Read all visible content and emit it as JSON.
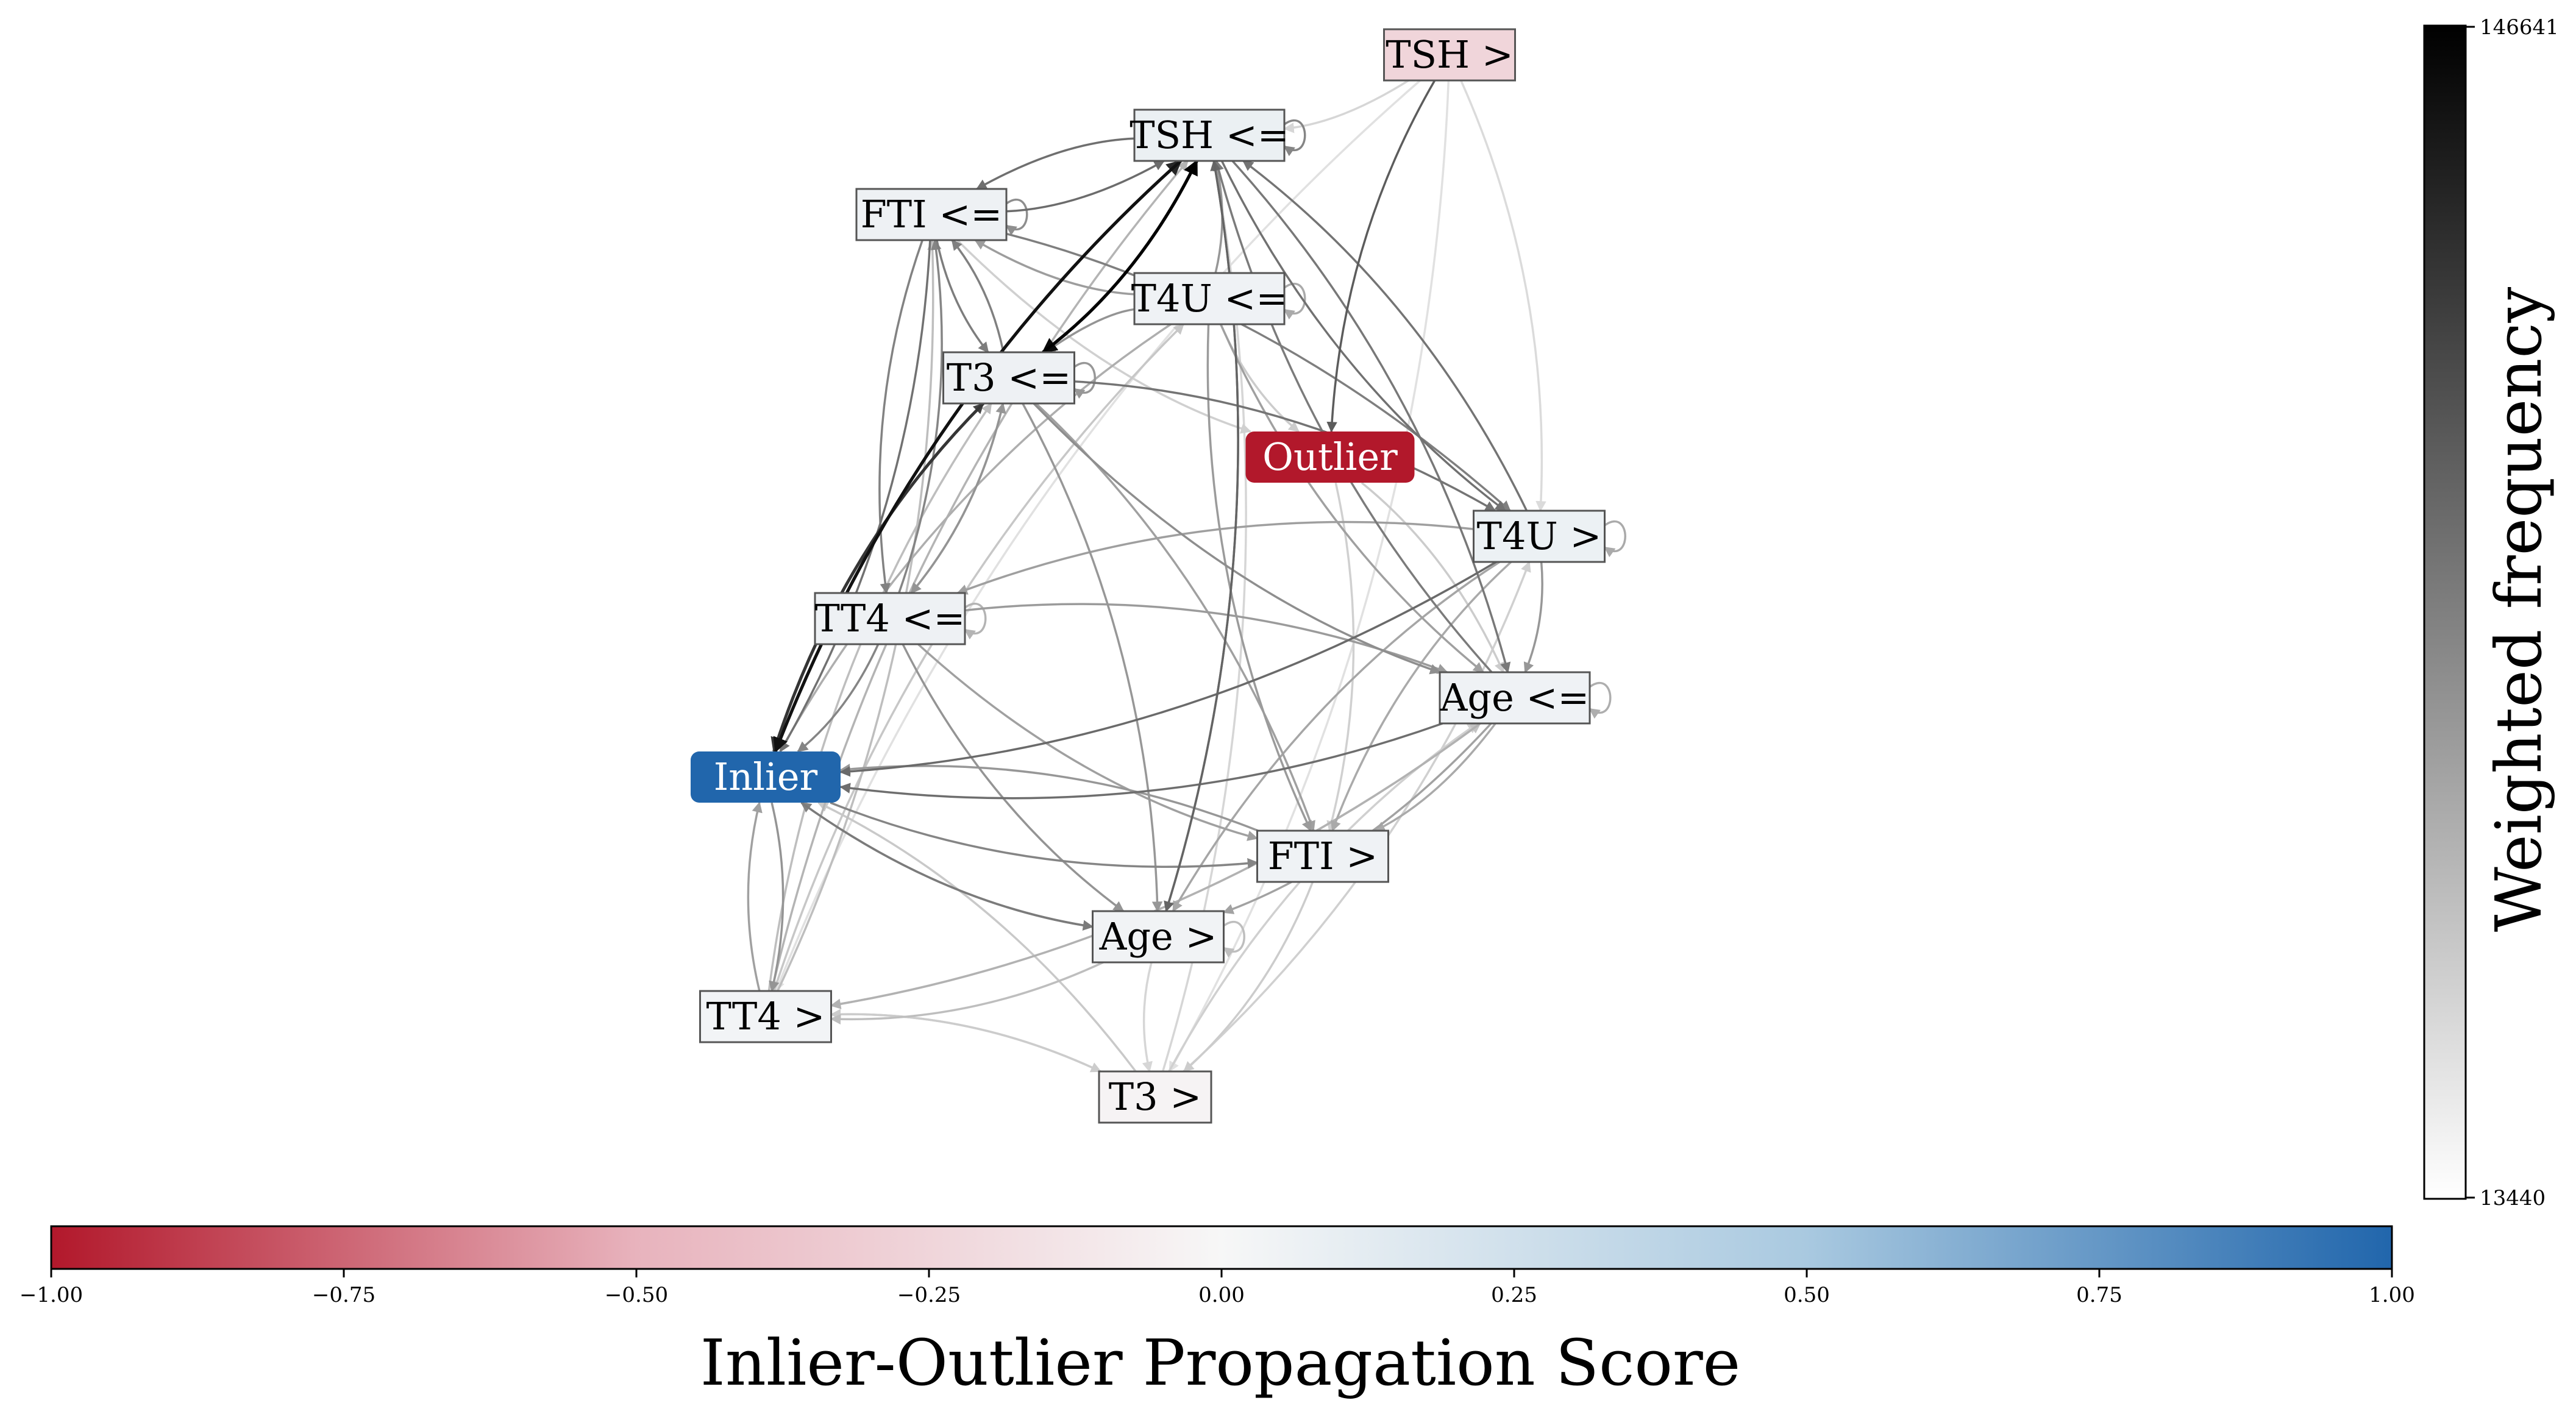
{
  "graph": {
    "nodes": [
      {
        "id": "tsh_gt",
        "label": "TSH >",
        "score": -0.25
      },
      {
        "id": "tsh_le",
        "label": "TSH <=",
        "score": 0.08
      },
      {
        "id": "fti_le",
        "label": "FTI <=",
        "score": 0.06
      },
      {
        "id": "t4u_le",
        "label": "T4U <=",
        "score": 0.05
      },
      {
        "id": "t3_le",
        "label": "T3 <=",
        "score": 0.06
      },
      {
        "id": "outlier",
        "label": "Outlier",
        "score": -1.0
      },
      {
        "id": "t4u_gt",
        "label": "T4U >",
        "score": 0.07
      },
      {
        "id": "tt4_le",
        "label": "TT4 <=",
        "score": 0.06
      },
      {
        "id": "age_le",
        "label": "Age <=",
        "score": 0.05
      },
      {
        "id": "inlier",
        "label": "Inlier",
        "score": 1.0
      },
      {
        "id": "fti_gt",
        "label": "FTI >",
        "score": 0.05
      },
      {
        "id": "age_gt",
        "label": "Age >",
        "score": 0.04
      },
      {
        "id": "tt4_gt",
        "label": "TT4 >",
        "score": 0.03
      },
      {
        "id": "t3_gt",
        "label": "T3 >",
        "score": -0.03
      }
    ],
    "edges": [
      {
        "from": "tsh_gt",
        "to": "outlier",
        "weight": 85000
      },
      {
        "from": "t3_le",
        "to": "tsh_le",
        "weight": 146641
      },
      {
        "from": "tsh_le",
        "to": "t3_le",
        "weight": 140000
      },
      {
        "from": "tsh_le",
        "to": "inlier",
        "weight": 135000
      },
      {
        "from": "inlier",
        "to": "tsh_le",
        "weight": 120000
      },
      {
        "from": "t3_le",
        "to": "inlier",
        "weight": 110000
      },
      {
        "from": "inlier",
        "to": "t3_le",
        "weight": 100000
      },
      {
        "from": "tsh_le",
        "to": "age_gt",
        "weight": 80000
      },
      {
        "from": "age_gt",
        "to": "tsh_le",
        "weight": 78000
      },
      {
        "from": "tsh_le",
        "to": "t4u_gt",
        "weight": 72000
      },
      {
        "from": "t4u_gt",
        "to": "tsh_le",
        "weight": 70000
      },
      {
        "from": "tsh_le",
        "to": "age_le",
        "weight": 68000
      },
      {
        "from": "age_le",
        "to": "tsh_le",
        "weight": 66000
      },
      {
        "from": "t4u_gt",
        "to": "inlier",
        "weight": 76000
      },
      {
        "from": "age_le",
        "to": "inlier",
        "weight": 74000
      },
      {
        "from": "fti_le",
        "to": "tsh_le",
        "weight": 75000
      },
      {
        "from": "tsh_le",
        "to": "fti_le",
        "weight": 73000
      },
      {
        "from": "fti_le",
        "to": "t3_le",
        "weight": 65000
      },
      {
        "from": "t3_le",
        "to": "fti_le",
        "weight": 63000
      },
      {
        "from": "fti_le",
        "to": "tt4_le",
        "weight": 62000
      },
      {
        "from": "tt4_le",
        "to": "fti_le",
        "weight": 60000
      },
      {
        "from": "fti_le",
        "to": "t4u_gt",
        "weight": 64000
      },
      {
        "from": "fti_le",
        "to": "inlier",
        "weight": 72000
      },
      {
        "from": "t3_le",
        "to": "t4u_gt",
        "weight": 70000
      },
      {
        "from": "t4u_le",
        "to": "tsh_le",
        "weight": 50000
      },
      {
        "from": "t4u_le",
        "to": "t3_le",
        "weight": 52000
      },
      {
        "from": "t4u_le",
        "to": "fti_gt",
        "weight": 48000
      },
      {
        "from": "t4u_le",
        "to": "age_le",
        "weight": 45000
      },
      {
        "from": "t4u_le",
        "to": "fti_le",
        "weight": 47000
      },
      {
        "from": "t3_le",
        "to": "age_le",
        "weight": 55000
      },
      {
        "from": "t3_le",
        "to": "age_gt",
        "weight": 50000
      },
      {
        "from": "t3_le",
        "to": "fti_gt",
        "weight": 45000
      },
      {
        "from": "t3_le",
        "to": "tt4_le",
        "weight": 52000
      },
      {
        "from": "tt4_le",
        "to": "t3_le",
        "weight": 50000
      },
      {
        "from": "tt4_le",
        "to": "inlier",
        "weight": 60000
      },
      {
        "from": "tt4_le",
        "to": "age_gt",
        "weight": 52000
      },
      {
        "from": "tt4_le",
        "to": "fti_gt",
        "weight": 45000
      },
      {
        "from": "tt4_le",
        "to": "age_le",
        "weight": 48000
      },
      {
        "from": "t4u_gt",
        "to": "tt4_le",
        "weight": 46000
      },
      {
        "from": "t4u_gt",
        "to": "age_le",
        "weight": 50000
      },
      {
        "from": "t4u_gt",
        "to": "age_gt",
        "weight": 42000
      },
      {
        "from": "t4u_gt",
        "to": "fti_gt",
        "weight": 40000
      },
      {
        "from": "age_le",
        "to": "age_gt",
        "weight": 44000
      },
      {
        "from": "age_le",
        "to": "fti_gt",
        "weight": 40000
      },
      {
        "from": "age_le",
        "to": "tt4_gt",
        "weight": 36000
      },
      {
        "from": "inlier",
        "to": "fti_gt",
        "weight": 60000
      },
      {
        "from": "inlier",
        "to": "age_gt",
        "weight": 66000
      },
      {
        "from": "age_gt",
        "to": "inlier",
        "weight": 62000
      },
      {
        "from": "inlier",
        "to": "tt4_gt",
        "weight": 52000
      },
      {
        "from": "tt4_gt",
        "to": "inlier",
        "weight": 45000
      },
      {
        "from": "age_gt",
        "to": "tt4_gt",
        "weight": 30000
      },
      {
        "from": "tt4_gt",
        "to": "age_le",
        "weight": 28000
      },
      {
        "from": "tt4_gt",
        "to": "t3_gt",
        "weight": 24000
      },
      {
        "from": "t3_gt",
        "to": "tt4_gt",
        "weight": 24000
      },
      {
        "from": "t3_gt",
        "to": "age_le",
        "weight": 22000
      },
      {
        "from": "t3_gt",
        "to": "t4u_gt",
        "weight": 22000
      },
      {
        "from": "t3_gt",
        "to": "inlier",
        "weight": 25000
      },
      {
        "from": "t3_gt",
        "to": "tsh_le",
        "weight": 20000
      },
      {
        "from": "tt4_gt",
        "to": "tsh_le",
        "weight": 35000
      },
      {
        "from": "tt4_gt",
        "to": "fti_le",
        "weight": 30000
      },
      {
        "from": "tt4_gt",
        "to": "t3_le",
        "weight": 30000
      },
      {
        "from": "tt4_gt",
        "to": "t4u_le",
        "weight": 26000
      },
      {
        "from": "outlier",
        "to": "age_le",
        "weight": 24000
      },
      {
        "from": "outlier",
        "to": "fti_gt",
        "weight": 22000
      },
      {
        "from": "t4u_le",
        "to": "outlier",
        "weight": 24000
      },
      {
        "from": "fti_le",
        "to": "outlier",
        "weight": 22000
      },
      {
        "from": "tsh_gt",
        "to": "tsh_le",
        "weight": 20000
      },
      {
        "from": "tsh_gt",
        "to": "t4u_gt",
        "weight": 18000
      },
      {
        "from": "tsh_gt",
        "to": "t3_gt",
        "weight": 16000
      },
      {
        "from": "tsh_gt",
        "to": "tt4_gt",
        "weight": 16000
      },
      {
        "from": "t4u_le",
        "to": "inlier",
        "weight": 38000
      },
      {
        "from": "fti_gt",
        "to": "inlier",
        "weight": 50000
      },
      {
        "from": "fti_gt",
        "to": "t3_gt",
        "weight": 24000
      },
      {
        "from": "age_gt",
        "to": "t3_gt",
        "weight": 20000
      },
      {
        "from": "t4u_le",
        "to": "t4u_le",
        "weight": 40000
      },
      {
        "from": "tsh_le",
        "to": "tsh_le",
        "weight": 60000
      },
      {
        "from": "fti_le",
        "to": "fti_le",
        "weight": 55000
      },
      {
        "from": "t3_le",
        "to": "t3_le",
        "weight": 50000
      },
      {
        "from": "t4u_gt",
        "to": "t4u_gt",
        "weight": 40000
      },
      {
        "from": "age_le",
        "to": "age_le",
        "weight": 38000
      },
      {
        "from": "tt4_le",
        "to": "tt4_le",
        "weight": 35000
      },
      {
        "from": "age_gt",
        "to": "age_gt",
        "weight": 30000
      }
    ]
  },
  "colorbar_score": {
    "title": "Inlier-Outlier Propagation Score",
    "min": -1.0,
    "max": 1.0,
    "ticks": [
      "−1.00",
      "−0.75",
      "−0.50",
      "−0.25",
      "0.00",
      "0.25",
      "0.50",
      "0.75",
      "1.00"
    ],
    "colors": {
      "negative": "#b2182b",
      "mid_negative": "#e8b3bd",
      "zero": "#f7f7f7",
      "mid_positive": "#a9c9e0",
      "positive": "#2166ac"
    }
  },
  "colorbar_weight": {
    "title": "Weighted frequency",
    "min": 13440,
    "max": 146641,
    "tick_min": "13440",
    "tick_max": "146641",
    "colors": {
      "low": "#ffffff",
      "high": "#000000"
    }
  }
}
